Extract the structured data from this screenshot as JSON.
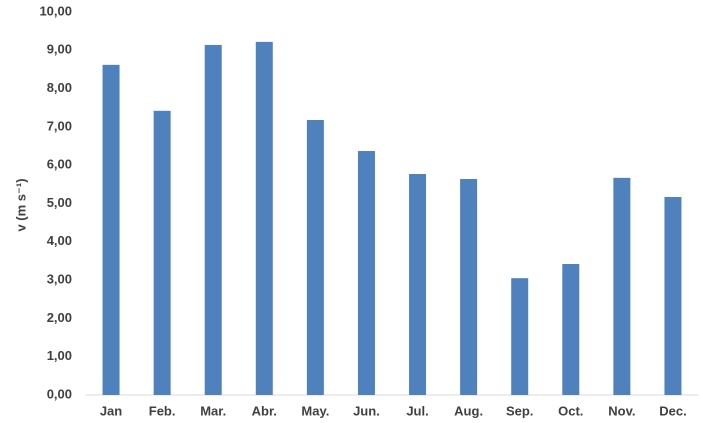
{
  "chart_data": {
    "type": "bar",
    "y_label": "v (m s⁻¹)",
    "categories": [
      "Jan",
      "Feb.",
      "Mar.",
      "Abr.",
      "May.",
      "Jun.",
      "Jul.",
      "Aug.",
      "Sep.",
      "Oct.",
      "Nov.",
      "Dec."
    ],
    "values": [
      8.62,
      7.42,
      9.14,
      9.22,
      7.18,
      6.37,
      5.77,
      5.64,
      3.05,
      3.42,
      5.67,
      5.17
    ],
    "color": "#4f81bd",
    "ylim": [
      0,
      10
    ],
    "yticks": [
      {
        "value": 0,
        "label": "0,00"
      },
      {
        "value": 1,
        "label": "1,00"
      },
      {
        "value": 2,
        "label": "2,00"
      },
      {
        "value": 3,
        "label": "3,00"
      },
      {
        "value": 4,
        "label": "4,00"
      },
      {
        "value": 5,
        "label": "5,00"
      },
      {
        "value": 6,
        "label": "6,00"
      },
      {
        "value": 7,
        "label": "7,00"
      },
      {
        "value": 8,
        "label": "8,00"
      },
      {
        "value": 9,
        "label": "9,00"
      },
      {
        "value": 10,
        "label": "10,00"
      }
    ]
  }
}
